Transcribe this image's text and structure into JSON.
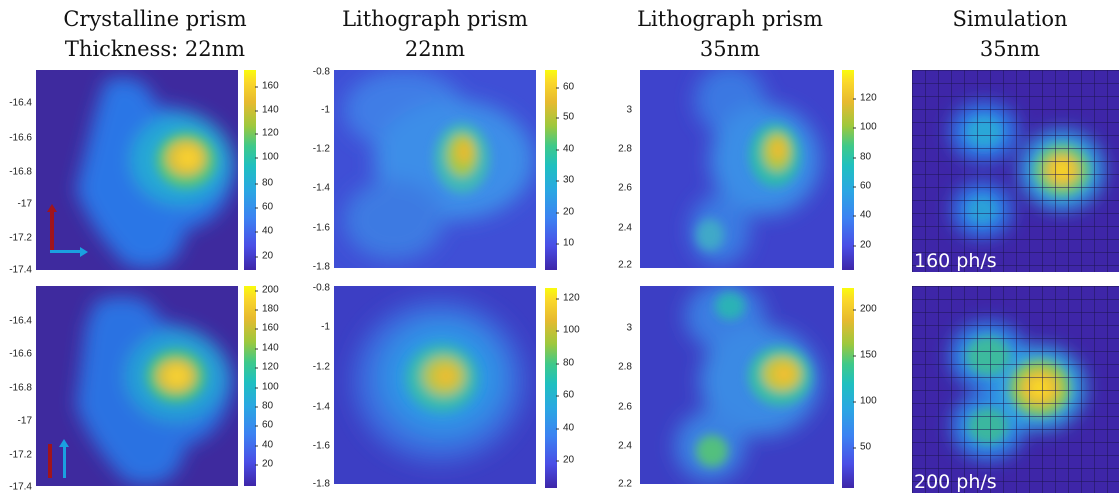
{
  "columns": [
    {
      "title_line1": "Crystalline prism",
      "title_line2": "Thickness: 22nm"
    },
    {
      "title_line1": "Lithograph prism",
      "title_line2": "22nm"
    },
    {
      "title_line1": "Lithograph prism",
      "title_line2": "35nm"
    },
    {
      "title_line1": "Simulation",
      "title_line2": "35nm"
    }
  ],
  "panels": {
    "crystalline_22nm_top": {
      "yticks": [
        "-16.4",
        "-16.6",
        "-16.8",
        "-17",
        "-17.2",
        "-17.4"
      ],
      "colorbar_ticks": [
        "160",
        "140",
        "120",
        "100",
        "80",
        "60",
        "40",
        "20"
      ]
    },
    "crystalline_22nm_bottom": {
      "yticks": [
        "-16.4",
        "-16.6",
        "-16.8",
        "-17",
        "-17.2",
        "-17.4"
      ],
      "colorbar_ticks": [
        "200",
        "180",
        "160",
        "140",
        "120",
        "100",
        "80",
        "60",
        "40",
        "20"
      ]
    },
    "lithograph_22nm_top": {
      "yticks": [
        "-0.8",
        "-1",
        "-1.2",
        "-1.4",
        "-1.6",
        "-1.8"
      ],
      "colorbar_ticks": [
        "60",
        "50",
        "40",
        "30",
        "20",
        "10"
      ]
    },
    "lithograph_22nm_bottom": {
      "yticks": [
        "-0.8",
        "-1",
        "-1.2",
        "-1.4",
        "-1.6",
        "-1.8"
      ],
      "colorbar_ticks": [
        "120",
        "100",
        "80",
        "60",
        "40",
        "20"
      ]
    },
    "lithograph_35nm_top": {
      "yticks": [
        "3",
        "2.8",
        "2.6",
        "2.4",
        "2.2"
      ],
      "colorbar_ticks": [
        "120",
        "100",
        "80",
        "60",
        "40",
        "20"
      ]
    },
    "lithograph_35nm_bottom": {
      "yticks": [
        "3",
        "2.8",
        "2.6",
        "2.4",
        "2.2"
      ],
      "colorbar_ticks": [
        "200",
        "150",
        "100",
        "50"
      ]
    },
    "simulation_top": {
      "rate_label": "160 ph/s"
    },
    "simulation_bottom": {
      "rate_label": "200 ph/s"
    }
  },
  "colors": {
    "background_dark": "#3e2a9e",
    "polarization_red": "#a0141c",
    "polarization_blue": "#1aa0e0"
  }
}
